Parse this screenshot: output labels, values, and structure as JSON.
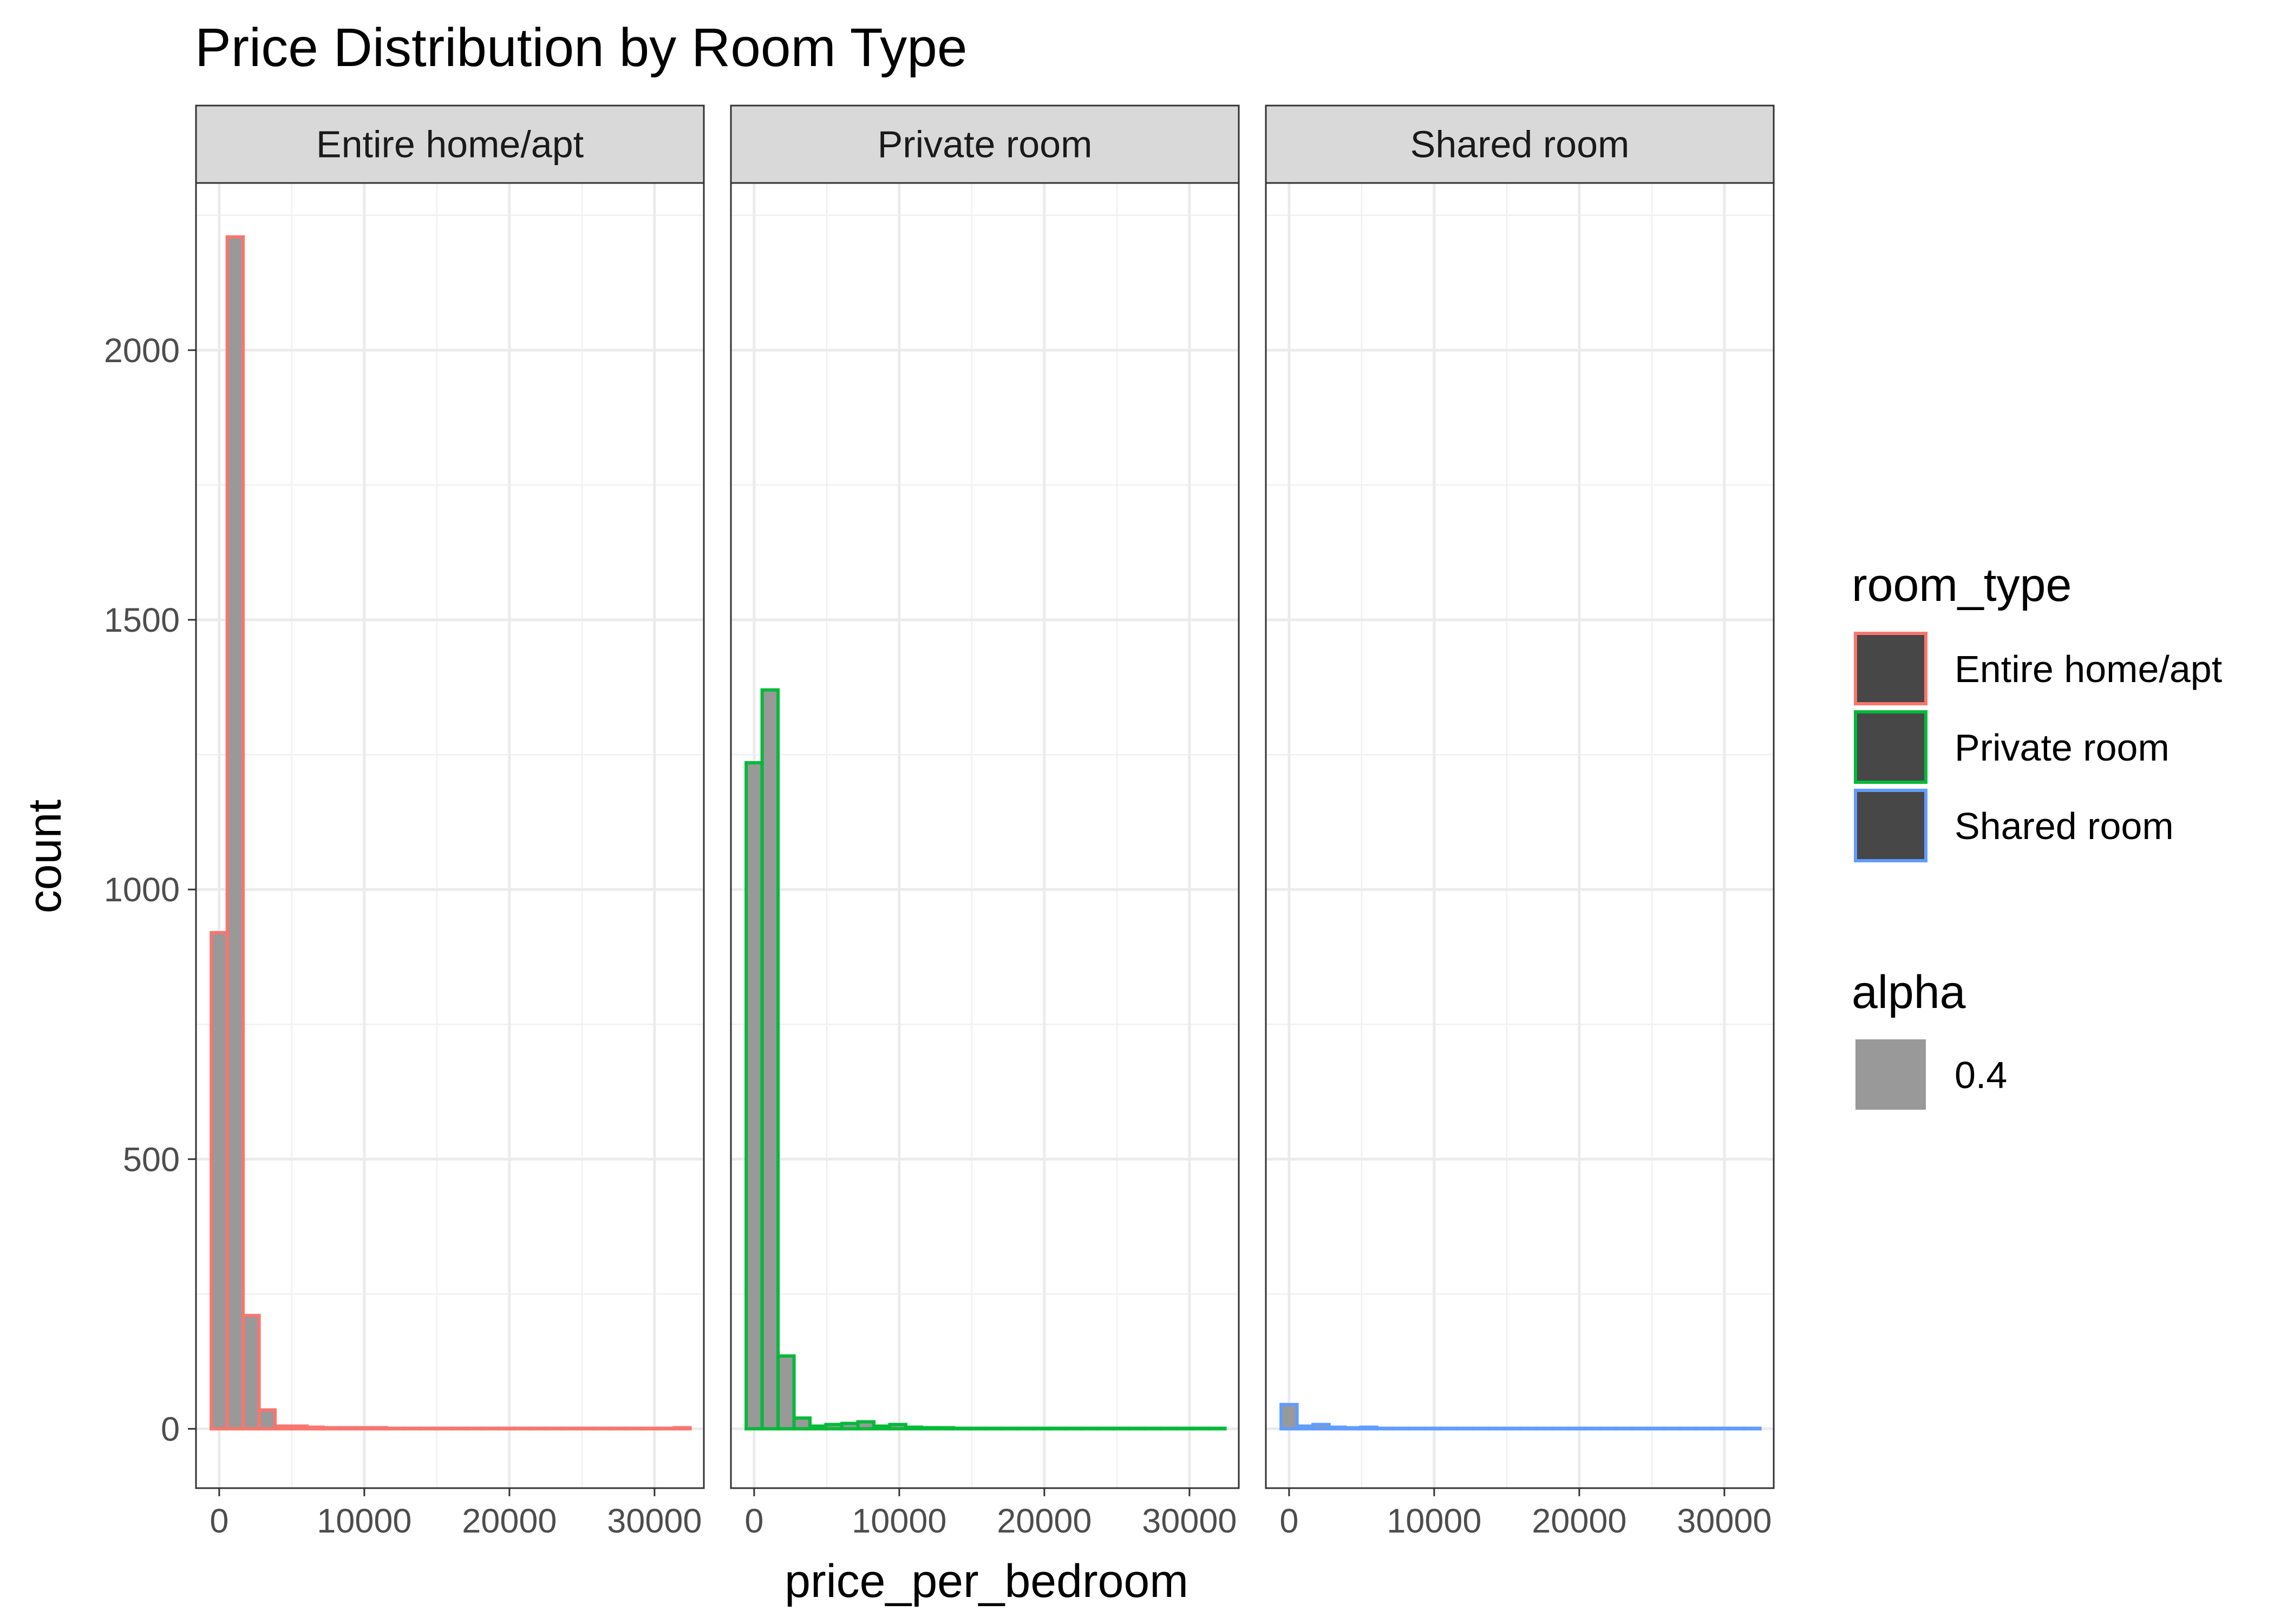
{
  "chart_data": {
    "type": "bar",
    "title": "Price Distribution by Room Type",
    "xlabel": "price_per_bedroom",
    "ylabel": "count",
    "xlim": [
      -1600,
      33400
    ],
    "ylim": [
      -110,
      2310
    ],
    "x_ticks": [
      0,
      10000,
      20000,
      30000
    ],
    "y_ticks": [
      0,
      500,
      1000,
      1500,
      2000
    ],
    "x_tick_labels": [
      "0",
      "10000",
      "20000",
      "30000"
    ],
    "y_tick_labels": [
      "0",
      "500",
      "1000",
      "1500",
      "2000"
    ],
    "grid": true,
    "bin_width": 1100,
    "bin_start": -550,
    "facets": [
      {
        "label": "Entire home/apt",
        "color": "#F8766D",
        "counts": [
          920,
          2210,
          210,
          35,
          5,
          5,
          3,
          2,
          2,
          2,
          2,
          1,
          1,
          1,
          1,
          1,
          1,
          1,
          1,
          1,
          1,
          1,
          1,
          1,
          1,
          1,
          1,
          1,
          1,
          2
        ]
      },
      {
        "label": "Private room",
        "color": "#00BA38",
        "counts": [
          1235,
          1370,
          135,
          20,
          5,
          8,
          10,
          13,
          5,
          8,
          3,
          2,
          2,
          1,
          1,
          1,
          1,
          1,
          1,
          1,
          1,
          1,
          1,
          1,
          1,
          1,
          1,
          1,
          1,
          1
        ]
      },
      {
        "label": "Shared room",
        "color": "#619CFF",
        "counts": [
          45,
          5,
          8,
          3,
          2,
          3,
          1,
          1,
          1,
          1,
          1,
          1,
          1,
          1,
          1,
          1,
          1,
          1,
          1,
          1,
          1,
          1,
          1,
          1,
          1,
          1,
          1,
          1,
          1,
          1
        ]
      }
    ],
    "legend": {
      "placement": "right",
      "color_title": "room_type",
      "color_entries": [
        "Entire home/apt",
        "Private room",
        "Shared room"
      ],
      "alpha_title": "alpha",
      "alpha_entries": [
        "0.4"
      ]
    },
    "fill_color": "#999999",
    "legend_fill_color": "#474747"
  }
}
